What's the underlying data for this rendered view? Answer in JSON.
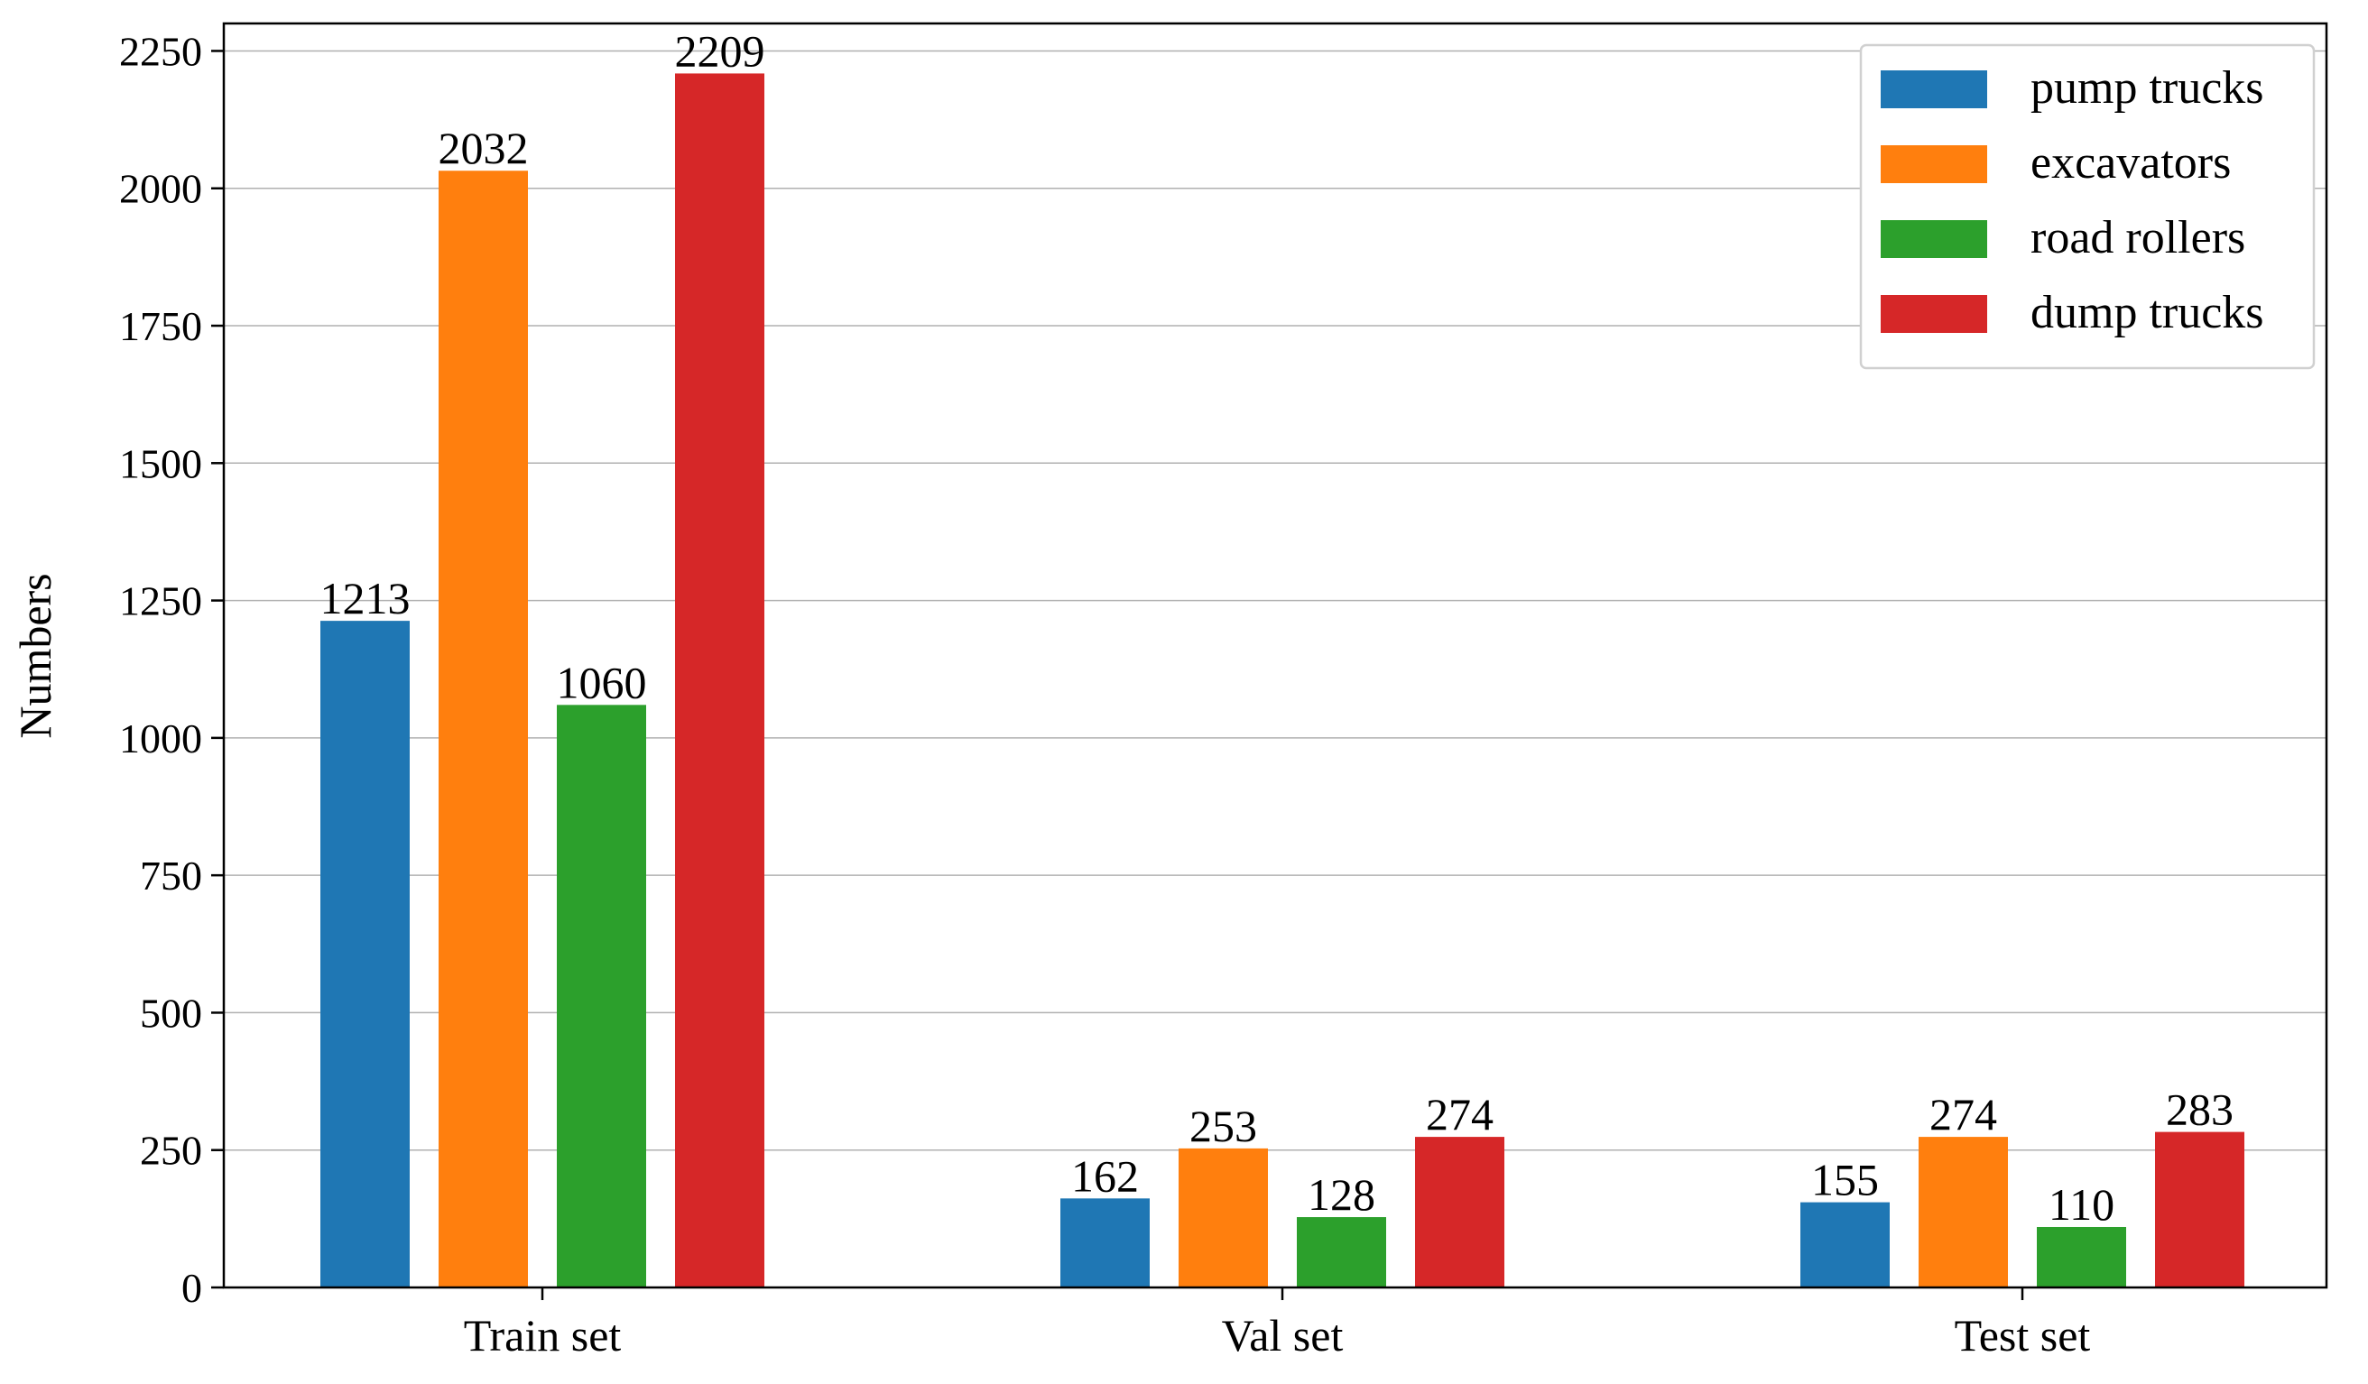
{
  "chart_data": {
    "type": "bar",
    "categories": [
      "Train set",
      "Val set",
      "Test set"
    ],
    "series": [
      {
        "name": "pump trucks",
        "values": [
          1213,
          162,
          155
        ],
        "color": "#1f77b4"
      },
      {
        "name": "excavators",
        "values": [
          2032,
          253,
          274
        ],
        "color": "#ff7f0e"
      },
      {
        "name": "road rollers",
        "values": [
          1060,
          128,
          110
        ],
        "color": "#2ca02c"
      },
      {
        "name": "dump trucks",
        "values": [
          2209,
          274,
          283
        ],
        "color": "#d62728"
      }
    ],
    "data_labels": [
      [
        "1213",
        "162",
        "155"
      ],
      [
        "2032",
        "253",
        "274"
      ],
      [
        "1060",
        "128",
        "110"
      ],
      [
        "2209",
        "274",
        "283"
      ]
    ],
    "title": "",
    "xlabel": "",
    "ylabel": "Numbers",
    "ylim": [
      0,
      2300
    ],
    "yticks": [
      0,
      250,
      500,
      750,
      1000,
      1250,
      1500,
      1750,
      2000,
      2250
    ],
    "ytick_labels": [
      "0",
      "250",
      "500",
      "750",
      "1000",
      "1250",
      "1500",
      "1750",
      "2000",
      "2250"
    ],
    "grid": "horizontal",
    "legend_position": "top-right"
  }
}
